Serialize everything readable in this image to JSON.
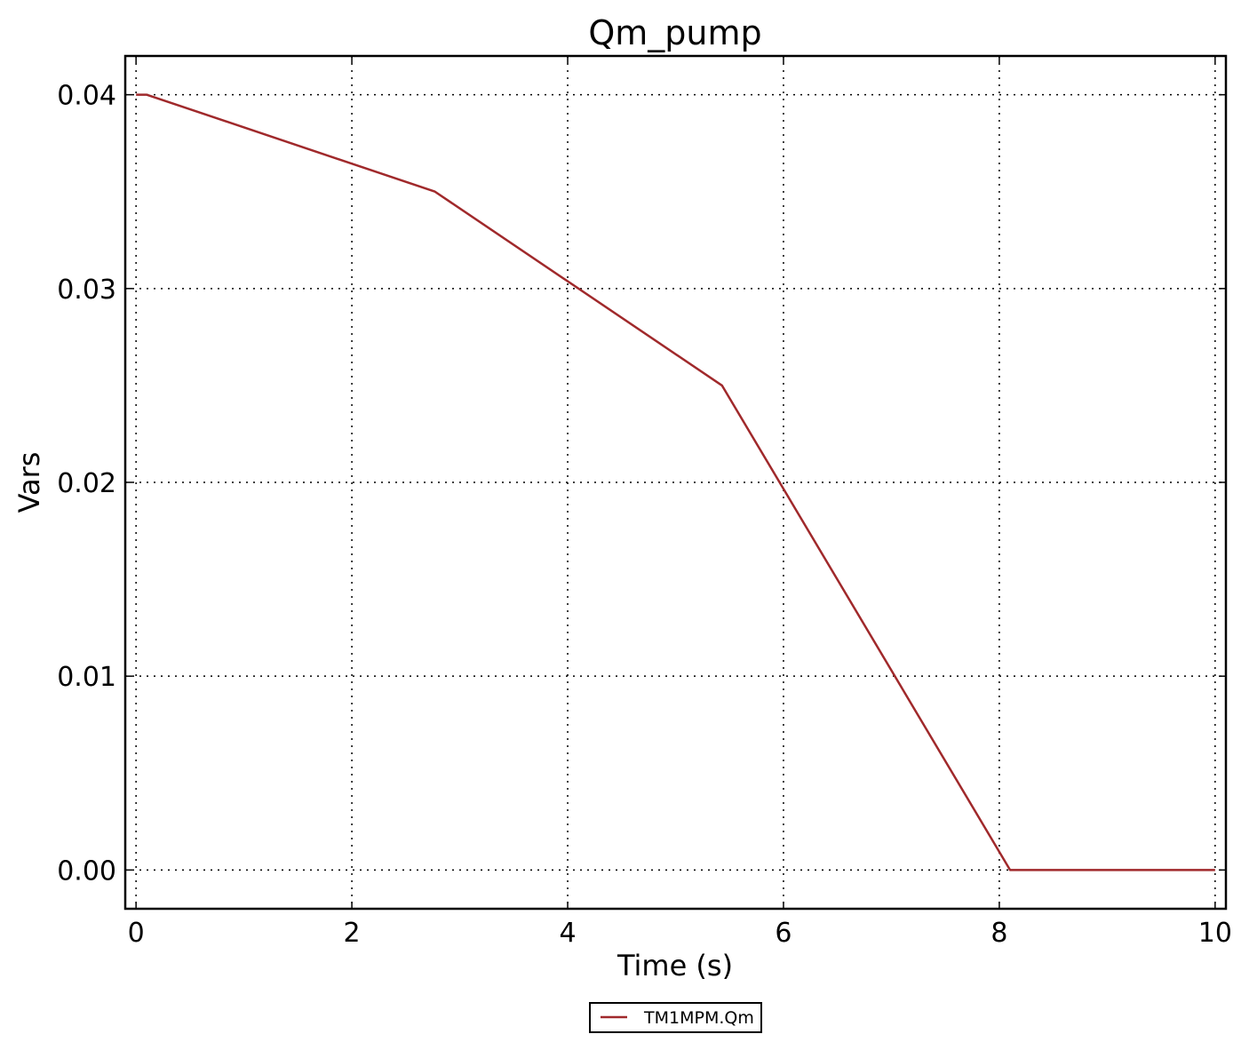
{
  "chart_data": {
    "type": "line",
    "title": "Qm_pump",
    "xlabel": "Time (s)",
    "ylabel": "Vars",
    "xlim": [
      -0.1,
      10.1
    ],
    "ylim": [
      -0.002,
      0.042
    ],
    "xticks": [
      0,
      2,
      4,
      6,
      8,
      10
    ],
    "xtick_labels": [
      "0",
      "2",
      "4",
      "6",
      "8",
      "10"
    ],
    "yticks": [
      0.0,
      0.01,
      0.02,
      0.03,
      0.04
    ],
    "ytick_labels": [
      "0.00",
      "0.01",
      "0.02",
      "0.03",
      "0.04"
    ],
    "grid": true,
    "legend_position": "bottom-center-outside",
    "series": [
      {
        "name": "TM1MPM.Qm",
        "color": "#a0292b",
        "x": [
          0,
          0.1,
          2.77,
          5.43,
          8.1,
          10
        ],
        "y": [
          0.04,
          0.04,
          0.035,
          0.025,
          0.0,
          0.0
        ]
      }
    ]
  }
}
